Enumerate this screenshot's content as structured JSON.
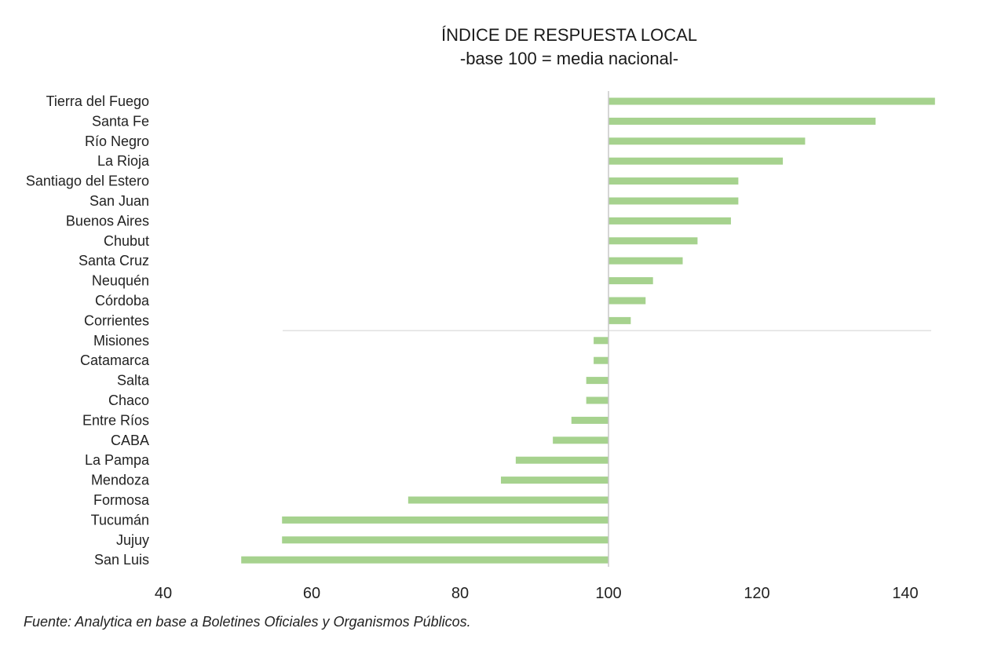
{
  "chart_data": {
    "type": "bar",
    "orientation": "horizontal",
    "title": "ÍNDICE DE RESPUESTA LOCAL",
    "subtitle": "-base 100 = media nacional-",
    "baseline": 100,
    "xlim": [
      40,
      145
    ],
    "xticks": [
      "40",
      "60",
      "80",
      "100",
      "120",
      "140"
    ],
    "bar_color": "#a6d28e",
    "categories": [
      "Tierra del Fuego",
      "Santa Fe",
      "Río Negro",
      "La Rioja",
      "Santiago del Estero",
      "San Juan",
      "Buenos Aires",
      "Chubut",
      "Santa Cruz",
      "Neuquén",
      "Córdoba",
      "Corrientes",
      "Misiones",
      "Catamarca",
      "Salta",
      "Chaco",
      "Entre Ríos",
      "CABA",
      "La Pampa",
      "Mendoza",
      "Formosa",
      "Tucumán",
      "Jujuy",
      "San Luis"
    ],
    "values": [
      144,
      136,
      126.5,
      123.5,
      117.5,
      117.5,
      116.5,
      112,
      110,
      106,
      105,
      103,
      98,
      98,
      97,
      97,
      95,
      92.5,
      87.5,
      85.5,
      73,
      56,
      56,
      50.5
    ]
  },
  "source": "Fuente: Analytica en base a Boletines Oficiales y Organismos Públicos."
}
